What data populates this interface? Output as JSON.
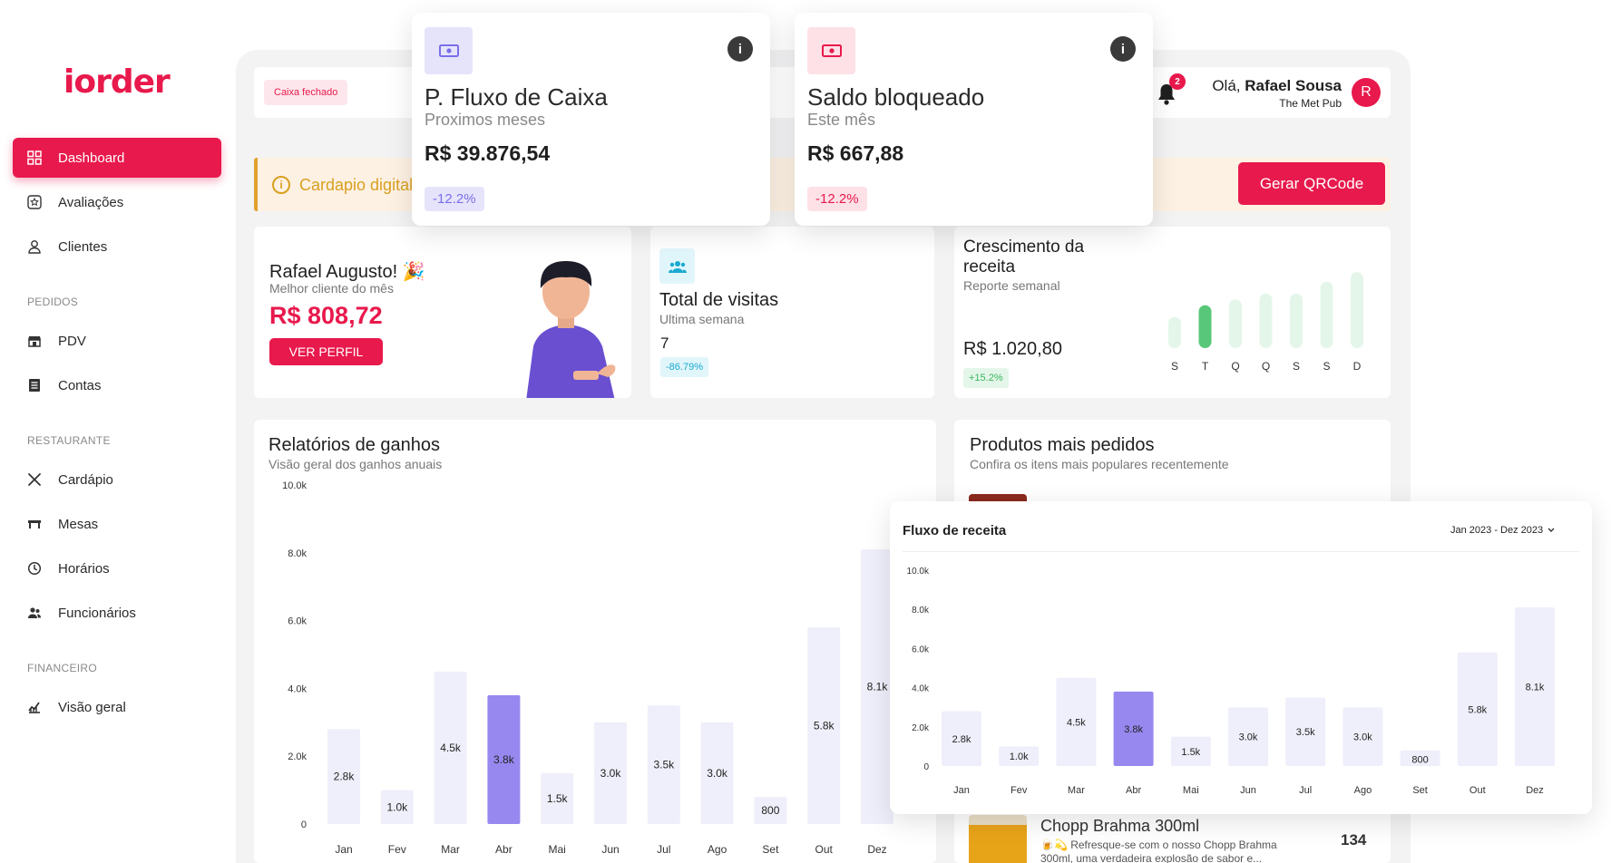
{
  "brand": {
    "logo": "iorder",
    "accent": "#e8194c"
  },
  "sidebar": {
    "items": [
      {
        "label": "Dashboard",
        "icon": "grid-icon"
      },
      {
        "label": "Avaliações",
        "icon": "star-badge-icon"
      },
      {
        "label": "Clientes",
        "icon": "user-icon"
      },
      {
        "label": "PDV",
        "icon": "store-icon"
      },
      {
        "label": "Contas",
        "icon": "list-icon"
      },
      {
        "label": "Cardápio",
        "icon": "utensils-icon"
      },
      {
        "label": "Mesas",
        "icon": "table-icon"
      },
      {
        "label": "Horários",
        "icon": "clock-icon"
      },
      {
        "label": "Funcionários",
        "icon": "users-icon"
      },
      {
        "label": "Visão geral",
        "icon": "chart-icon"
      }
    ],
    "sections": [
      "PEDIDOS",
      "RESTAURANTE",
      "FINANCEIRO"
    ]
  },
  "header": {
    "status_badge": "Caixa fechado",
    "notifications": "2",
    "greeting": "Olá,",
    "user_name": "Rafael Sousa",
    "venue": "The Met Pub",
    "avatar": "R"
  },
  "banner": {
    "text": "Cardapio digital",
    "button": "Gerar QRCode"
  },
  "kpi_cashflow": {
    "title": "P. Fluxo de Caixa",
    "subtitle": "Proximos meses",
    "value": "R$ 39.876,54",
    "change": "-12.2%"
  },
  "kpi_blocked": {
    "title": "Saldo bloqueado",
    "subtitle": "Este mês",
    "value": "R$ 667,88",
    "change": "-12.2%"
  },
  "best_client": {
    "name": "Rafael Augusto!",
    "emoji": "🎉",
    "subtitle": "Melhor cliente do mês",
    "value": "R$ 808,72",
    "button": "VER PERFIL"
  },
  "visits": {
    "title": "Total de visitas",
    "subtitle": "Ultima semana",
    "value": "7",
    "change": "-86.79%"
  },
  "growth": {
    "title": "Crescimento da receita",
    "subtitle": "Reporte semanal",
    "value": "R$ 1.020,80",
    "change": "+15.2%",
    "chart_data": {
      "type": "bar",
      "categories": [
        "S",
        "T",
        "Q",
        "Q",
        "S",
        "S",
        "D"
      ],
      "values": [
        3.2,
        4.4,
        5,
        5.6,
        5.6,
        6.8,
        7.8
      ],
      "highlight_index": 1
    }
  },
  "earnings": {
    "title": "Relatórios de ganhos",
    "subtitle": "Visão geral dos ganhos anuais",
    "chart_data": {
      "type": "bar",
      "categories": [
        "Jan",
        "Fev",
        "Mar",
        "Abr",
        "Mai",
        "Jun",
        "Jul",
        "Ago",
        "Set",
        "Out",
        "Dez"
      ],
      "values": [
        2800,
        1000,
        4500,
        3800,
        1500,
        3000,
        3500,
        3000,
        800,
        5800,
        8100
      ],
      "labels": [
        "2.8k",
        "1.0k",
        "4.5k",
        "3.8k",
        "1.5k",
        "3.0k",
        "3.5k",
        "3.0k",
        "800",
        "5.8k",
        "8.1k"
      ],
      "yticks": [
        "0",
        "2.0k",
        "4.0k",
        "6.0k",
        "8.0k",
        "10.0k"
      ],
      "ylim": [
        0,
        10000
      ],
      "highlight_index": 3
    }
  },
  "products": {
    "title": "Produtos mais pedidos",
    "subtitle": "Confira os itens mais populares recentemente",
    "items": [
      {
        "name": "Chopp Brahma 300ml",
        "desc": "🍺💫 Refresque-se com o nosso Chopp Brahma 300ml, uma verdadeira explosão de sabor e...",
        "count": "134"
      }
    ]
  },
  "revenue_flow": {
    "title": "Fluxo de receita",
    "range": "Jan 2023 - Dez 2023",
    "chart_data": {
      "type": "bar",
      "categories": [
        "Jan",
        "Fev",
        "Mar",
        "Abr",
        "Mai",
        "Jun",
        "Jul",
        "Ago",
        "Set",
        "Out",
        "Dez"
      ],
      "values": [
        2800,
        1000,
        4500,
        3800,
        1500,
        3000,
        3500,
        3000,
        800,
        5800,
        8100
      ],
      "labels": [
        "2.8k",
        "1.0k",
        "4.5k",
        "3.8k",
        "1.5k",
        "3.0k",
        "3.5k",
        "3.0k",
        "800",
        "5.8k",
        "8.1k"
      ],
      "yticks": [
        "0",
        "2.0k",
        "4.0k",
        "6.0k",
        "8.0k",
        "10.0k"
      ],
      "ylim": [
        0,
        10000
      ],
      "highlight_index": 3
    }
  }
}
